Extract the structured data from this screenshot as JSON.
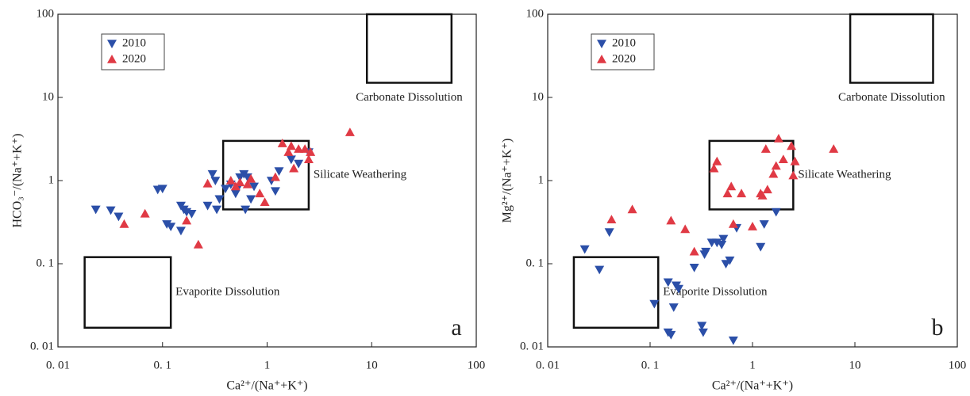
{
  "chart_data": [
    {
      "type": "scatter",
      "panel_label": "a",
      "xlabel": "Ca²⁺/(Na⁺+K⁺)",
      "ylabel": "HCO₃⁻/(Na⁺+K⁺)",
      "log_x": true,
      "log_y": true,
      "xlim": [
        0.01,
        100
      ],
      "ylim": [
        0.01,
        100
      ],
      "xticks": [
        {
          "value": 0.01,
          "label": "0. 01"
        },
        {
          "value": 0.1,
          "label": "0. 1"
        },
        1,
        10,
        100
      ],
      "yticks": [
        {
          "value": 0.01,
          "label": "0. 01"
        },
        {
          "value": 0.1,
          "label": "0. 1"
        },
        1,
        10,
        100
      ],
      "legend": "upper left",
      "regions": [
        {
          "label": "Carbonate Dissolution",
          "xlim": [
            9,
            58
          ],
          "ylim": [
            15,
            100
          ]
        },
        {
          "label": "Silicate Weathering",
          "xlim": [
            0.38,
            2.5
          ],
          "ylim": [
            0.45,
            3
          ]
        },
        {
          "label": "Evaporite Dissolution",
          "xlim": [
            0.018,
            0.12
          ],
          "ylim": [
            0.017,
            0.12
          ]
        }
      ],
      "series": [
        {
          "name": "2010",
          "color": "#2b4fa8",
          "marker": "triangle-down",
          "x": [
            0.023,
            0.032,
            0.038,
            0.09,
            0.1,
            0.11,
            0.12,
            0.15,
            0.15,
            0.16,
            0.17,
            0.19,
            0.27,
            0.3,
            0.32,
            0.33,
            0.35,
            0.4,
            0.45,
            0.5,
            0.52,
            0.55,
            0.6,
            0.62,
            0.65,
            0.7,
            0.75,
            1.1,
            1.2,
            1.3,
            1.7,
            2.0,
            2.5
          ],
          "y": [
            0.45,
            0.44,
            0.37,
            0.78,
            0.8,
            0.3,
            0.28,
            0.25,
            0.5,
            0.45,
            0.42,
            0.4,
            0.5,
            1.2,
            1.0,
            0.45,
            0.6,
            0.8,
            0.9,
            0.7,
            0.8,
            1.1,
            1.2,
            0.45,
            1.1,
            0.6,
            0.85,
            1.0,
            0.75,
            1.3,
            1.8,
            1.6,
            2.2
          ]
        },
        {
          "name": "2020",
          "color": "#e03a45",
          "marker": "triangle-up",
          "x": [
            0.043,
            0.068,
            0.17,
            0.22,
            0.27,
            0.45,
            0.5,
            0.55,
            0.65,
            0.7,
            0.85,
            0.95,
            1.2,
            1.4,
            1.6,
            1.7,
            1.8,
            2.0,
            2.3,
            2.5,
            2.6,
            6.2
          ],
          "y": [
            0.3,
            0.4,
            0.33,
            0.17,
            0.92,
            1.0,
            0.85,
            0.95,
            0.9,
            1.05,
            0.7,
            0.55,
            1.1,
            2.8,
            2.2,
            2.6,
            1.4,
            2.4,
            2.4,
            1.8,
            2.2,
            3.8
          ]
        }
      ]
    },
    {
      "type": "scatter",
      "panel_label": "b",
      "xlabel": "Ca²⁺/(Na⁺+K⁺)",
      "ylabel": "Mg²⁺/(Na⁺+K⁺)",
      "log_x": true,
      "log_y": true,
      "xlim": [
        0.01,
        100
      ],
      "ylim": [
        0.01,
        100
      ],
      "xticks": [
        {
          "value": 0.01,
          "label": "0. 01"
        },
        {
          "value": 0.1,
          "label": "0. 1"
        },
        1,
        10,
        100
      ],
      "yticks": [
        {
          "value": 0.01,
          "label": "0. 01"
        },
        {
          "value": 0.1,
          "label": "0. 1"
        },
        1,
        10,
        100
      ],
      "legend": "upper left",
      "regions": [
        {
          "label": "Carbonate Dissolution",
          "xlim": [
            9,
            58
          ],
          "ylim": [
            15,
            100
          ]
        },
        {
          "label": "Silicate Weathering",
          "xlim": [
            0.38,
            2.5
          ],
          "ylim": [
            0.45,
            3
          ]
        },
        {
          "label": "Evaporite Dissolution",
          "xlim": [
            0.018,
            0.12
          ],
          "ylim": [
            0.017,
            0.12
          ]
        }
      ],
      "series": [
        {
          "name": "2010",
          "color": "#2b4fa8",
          "marker": "triangle-down",
          "x": [
            0.023,
            0.032,
            0.04,
            0.11,
            0.15,
            0.15,
            0.16,
            0.17,
            0.18,
            0.19,
            0.27,
            0.32,
            0.33,
            0.34,
            0.35,
            0.4,
            0.45,
            0.5,
            0.52,
            0.55,
            0.6,
            0.65,
            0.7,
            1.2,
            1.3,
            1.7
          ],
          "y": [
            0.15,
            0.085,
            0.24,
            0.033,
            0.06,
            0.015,
            0.014,
            0.03,
            0.055,
            0.05,
            0.09,
            0.018,
            0.015,
            0.13,
            0.14,
            0.18,
            0.18,
            0.17,
            0.2,
            0.1,
            0.11,
            0.012,
            0.27,
            0.16,
            0.3,
            0.42
          ]
        },
        {
          "name": "2020",
          "color": "#e03a45",
          "marker": "triangle-up",
          "x": [
            0.042,
            0.067,
            0.16,
            0.22,
            0.27,
            0.42,
            0.45,
            0.57,
            0.62,
            0.65,
            0.78,
            1.0,
            1.2,
            1.25,
            1.35,
            1.4,
            1.6,
            1.7,
            1.8,
            2.0,
            2.4,
            2.5,
            2.6,
            6.2
          ],
          "y": [
            0.34,
            0.45,
            0.33,
            0.26,
            0.14,
            1.4,
            1.7,
            0.7,
            0.85,
            0.3,
            0.7,
            0.28,
            0.7,
            0.66,
            2.4,
            0.78,
            1.2,
            1.5,
            3.2,
            1.8,
            2.6,
            1.15,
            1.7,
            2.4
          ]
        }
      ]
    }
  ]
}
